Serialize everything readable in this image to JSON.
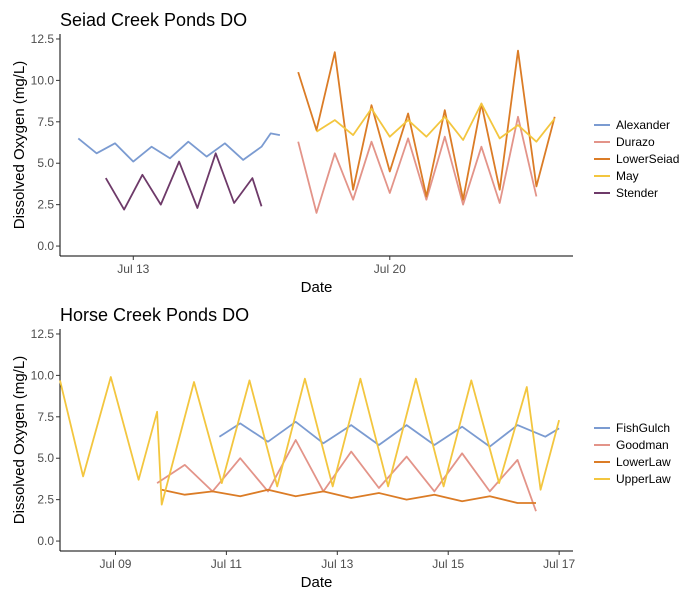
{
  "chart_data": [
    {
      "type": "line",
      "title": "Seiad Creek Ponds DO",
      "xlabel": "Date",
      "ylabel": "Dissolved Oxygen (mg/L)",
      "ylim": [
        0,
        12.5
      ],
      "yticks": [
        0.0,
        2.5,
        5.0,
        7.5,
        10.0,
        12.5
      ],
      "ytick_labels": [
        "0.0",
        "2.5",
        "5.0",
        "7.5",
        "10.0",
        "12.5"
      ],
      "xlim": [
        "2019-07-11",
        "2019-07-25"
      ],
      "xticks": [
        "2019-07-13",
        "2019-07-20"
      ],
      "xtick_labels": [
        "Jul 13",
        "Jul 20"
      ],
      "grid": false,
      "legend_position": "right",
      "series": [
        {
          "name": "Alexander",
          "color": "#7b9bd1",
          "x": [
            "2019-07-11T12:00",
            "2019-07-12T00:00",
            "2019-07-12T12:00",
            "2019-07-13T00:00",
            "2019-07-13T12:00",
            "2019-07-14T00:00",
            "2019-07-14T12:00",
            "2019-07-15T00:00",
            "2019-07-15T12:00",
            "2019-07-16T00:00",
            "2019-07-16T12:00",
            "2019-07-16T18:00",
            "2019-07-17T00:00"
          ],
          "y": [
            6.5,
            5.6,
            6.2,
            5.1,
            6.0,
            5.3,
            6.3,
            5.4,
            6.2,
            5.2,
            6.0,
            6.8,
            6.7
          ]
        },
        {
          "name": "Durazo",
          "color": "#e39489",
          "x": [
            "2019-07-17T12:00",
            "2019-07-18T00:00",
            "2019-07-18T12:00",
            "2019-07-19T00:00",
            "2019-07-19T12:00",
            "2019-07-20T00:00",
            "2019-07-20T12:00",
            "2019-07-21T00:00",
            "2019-07-21T12:00",
            "2019-07-22T00:00",
            "2019-07-22T12:00",
            "2019-07-23T00:00",
            "2019-07-23T12:00",
            "2019-07-24T00:00"
          ],
          "y": [
            6.3,
            2.0,
            5.6,
            2.8,
            6.3,
            3.2,
            6.5,
            2.8,
            6.6,
            2.5,
            6.0,
            2.6,
            7.8,
            3.0
          ]
        },
        {
          "name": "LowerSeiad",
          "color": "#db7c26",
          "x": [
            "2019-07-17T12:00",
            "2019-07-18T00:00",
            "2019-07-18T12:00",
            "2019-07-19T00:00",
            "2019-07-19T12:00",
            "2019-07-20T00:00",
            "2019-07-20T12:00",
            "2019-07-21T00:00",
            "2019-07-21T12:00",
            "2019-07-22T00:00",
            "2019-07-22T12:00",
            "2019-07-23T00:00",
            "2019-07-23T12:00",
            "2019-07-24T00:00",
            "2019-07-24T12:00"
          ],
          "y": [
            10.5,
            7.0,
            11.7,
            3.4,
            8.5,
            4.5,
            8.0,
            3.0,
            8.2,
            2.8,
            8.6,
            3.4,
            11.8,
            3.6,
            7.8
          ]
        },
        {
          "name": "May",
          "color": "#f3c63f",
          "x": [
            "2019-07-18T00:00",
            "2019-07-18T12:00",
            "2019-07-19T00:00",
            "2019-07-19T12:00",
            "2019-07-20T00:00",
            "2019-07-20T12:00",
            "2019-07-21T00:00",
            "2019-07-21T12:00",
            "2019-07-22T00:00",
            "2019-07-22T12:00",
            "2019-07-23T00:00",
            "2019-07-23T12:00",
            "2019-07-24T00:00",
            "2019-07-24T12:00"
          ],
          "y": [
            6.9,
            7.6,
            6.7,
            8.3,
            6.6,
            7.6,
            6.6,
            7.8,
            6.4,
            8.6,
            6.5,
            7.3,
            6.3,
            7.7
          ]
        },
        {
          "name": "Stender",
          "color": "#6e3a69",
          "x": [
            "2019-07-12T06:00",
            "2019-07-12T18:00",
            "2019-07-13T06:00",
            "2019-07-13T18:00",
            "2019-07-14T06:00",
            "2019-07-14T18:00",
            "2019-07-15T06:00",
            "2019-07-15T18:00",
            "2019-07-16T06:00",
            "2019-07-16T12:00"
          ],
          "y": [
            4.1,
            2.2,
            4.3,
            2.5,
            5.1,
            2.3,
            5.6,
            2.6,
            4.1,
            2.4
          ]
        }
      ]
    },
    {
      "type": "line",
      "title": "Horse Creek Ponds DO",
      "xlabel": "Date",
      "ylabel": "Dissolved Oxygen (mg/L)",
      "ylim": [
        0,
        12.5
      ],
      "yticks": [
        0.0,
        2.5,
        5.0,
        7.5,
        10.0,
        12.5
      ],
      "ytick_labels": [
        "0.0",
        "2.5",
        "5.0",
        "7.5",
        "10.0",
        "12.5"
      ],
      "xlim": [
        "2019-07-08T00:00",
        "2019-07-17T06:00"
      ],
      "xticks": [
        "2019-07-09",
        "2019-07-11",
        "2019-07-13",
        "2019-07-15",
        "2019-07-17"
      ],
      "xtick_labels": [
        "Jul 09",
        "Jul 11",
        "Jul 13",
        "Jul 15",
        "Jul 17"
      ],
      "grid": false,
      "legend_position": "right",
      "series": [
        {
          "name": "FishGulch",
          "color": "#7b9bd1",
          "x": [
            "2019-07-10T21:00",
            "2019-07-11T06:00",
            "2019-07-11T18:00",
            "2019-07-12T06:00",
            "2019-07-12T18:00",
            "2019-07-13T06:00",
            "2019-07-13T18:00",
            "2019-07-14T06:00",
            "2019-07-14T18:00",
            "2019-07-15T06:00",
            "2019-07-15T18:00",
            "2019-07-16T06:00",
            "2019-07-16T18:00",
            "2019-07-17T00:00"
          ],
          "y": [
            6.3,
            7.1,
            6.0,
            7.2,
            5.9,
            7.0,
            5.8,
            7.0,
            5.8,
            6.9,
            5.7,
            7.0,
            6.3,
            6.8
          ]
        },
        {
          "name": "Goodman",
          "color": "#e39489",
          "x": [
            "2019-07-09T18:00",
            "2019-07-10T06:00",
            "2019-07-10T18:00",
            "2019-07-11T06:00",
            "2019-07-11T18:00",
            "2019-07-12T06:00",
            "2019-07-12T18:00",
            "2019-07-13T06:00",
            "2019-07-13T18:00",
            "2019-07-14T06:00",
            "2019-07-14T18:00",
            "2019-07-15T06:00",
            "2019-07-15T18:00",
            "2019-07-16T06:00",
            "2019-07-16T14:00"
          ],
          "y": [
            3.5,
            4.6,
            3.0,
            5.0,
            3.0,
            6.1,
            3.0,
            5.4,
            3.2,
            5.1,
            3.0,
            5.3,
            3.0,
            4.9,
            1.8
          ]
        },
        {
          "name": "LowerLaw",
          "color": "#db7c26",
          "x": [
            "2019-07-09T20:00",
            "2019-07-10T06:00",
            "2019-07-10T18:00",
            "2019-07-11T06:00",
            "2019-07-11T18:00",
            "2019-07-12T06:00",
            "2019-07-12T18:00",
            "2019-07-13T06:00",
            "2019-07-13T18:00",
            "2019-07-14T06:00",
            "2019-07-14T18:00",
            "2019-07-15T06:00",
            "2019-07-15T18:00",
            "2019-07-16T06:00",
            "2019-07-16T14:00"
          ],
          "y": [
            3.1,
            2.8,
            3.0,
            2.7,
            3.1,
            2.7,
            3.0,
            2.6,
            2.9,
            2.5,
            2.8,
            2.4,
            2.7,
            2.3,
            2.3
          ]
        },
        {
          "name": "UpperLaw",
          "color": "#f3c63f",
          "x": [
            "2019-07-08T00:00",
            "2019-07-08T10:00",
            "2019-07-08T22:00",
            "2019-07-09T10:00",
            "2019-07-09T18:00",
            "2019-07-09T20:00",
            "2019-07-10T10:00",
            "2019-07-10T22:00",
            "2019-07-11T10:00",
            "2019-07-11T22:00",
            "2019-07-12T10:00",
            "2019-07-12T22:00",
            "2019-07-13T10:00",
            "2019-07-13T22:00",
            "2019-07-14T10:00",
            "2019-07-14T22:00",
            "2019-07-15T10:00",
            "2019-07-15T22:00",
            "2019-07-16T10:00",
            "2019-07-16T16:00",
            "2019-07-17T00:00"
          ],
          "y": [
            9.7,
            3.9,
            9.9,
            3.7,
            7.8,
            2.2,
            9.6,
            3.5,
            9.7,
            3.3,
            9.8,
            3.3,
            9.8,
            3.3,
            9.8,
            3.3,
            9.7,
            3.5,
            9.3,
            3.1,
            7.3
          ]
        }
      ]
    }
  ]
}
